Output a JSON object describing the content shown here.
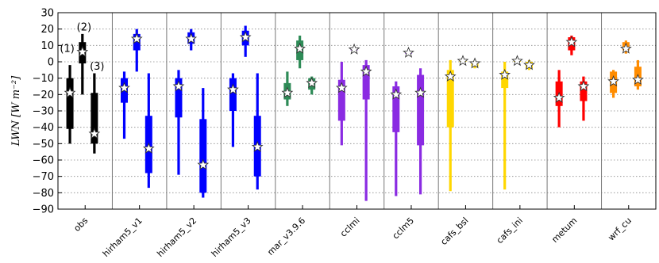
{
  "chart_data": {
    "type": "boxplot",
    "ylabel": "LWN [W m⁻²]",
    "ylim": [
      -90,
      30
    ],
    "yticks": [
      30,
      20,
      10,
      0,
      -10,
      -20,
      -30,
      -40,
      -50,
      -60,
      -70,
      -80,
      -90
    ],
    "grid": "horizontal dotted",
    "categories": [
      "obs",
      "hirham5_v1",
      "hirham5_v2",
      "hirham5_v3",
      "mar_v3.9.6",
      "cclmi",
      "cclm5",
      "cafs_bsl",
      "cafs_ini",
      "metum",
      "wrf_cu"
    ],
    "series_annotations": [
      "(1)",
      "(2)",
      "(3)"
    ],
    "colors": {
      "obs": "#000000",
      "hirham5_v1": "#0000ff",
      "hirham5_v2": "#0000ff",
      "hirham5_v3": "#0000ff",
      "mar_v3.9.6": "#2e8b57",
      "cclmi": "#8a2be2",
      "cclm5": "#8a2be2",
      "cafs_bsl": "#ffd700",
      "cafs_ini": "#ffd700",
      "metum": "#ff0000",
      "wrf_cu": "#ff8c00"
    },
    "groups": [
      {
        "category": "obs",
        "boxes": [
          {
            "series": 1,
            "min": -50,
            "q1": -41,
            "q3": -10,
            "max": -2,
            "mean": -19
          },
          {
            "series": 2,
            "min": -20,
            "q1": -1,
            "q3": 12,
            "max": 17,
            "mean": 6
          },
          {
            "series": 3,
            "min": -56,
            "q1": -50,
            "q3": -19,
            "max": -7,
            "mean": -44
          }
        ]
      },
      {
        "category": "hirham5_v1",
        "boxes": [
          {
            "series": 1,
            "min": -47,
            "q1": -25,
            "q3": -10,
            "max": -6,
            "mean": -16
          },
          {
            "series": 2,
            "min": -6,
            "q1": 7,
            "q3": 17,
            "max": 20,
            "mean": 14
          },
          {
            "series": 3,
            "min": -77,
            "q1": -68,
            "q3": -33,
            "max": -7,
            "mean": -53
          }
        ]
      },
      {
        "category": "hirham5_v2",
        "boxes": [
          {
            "series": 1,
            "min": -69,
            "q1": -34,
            "q3": -10,
            "max": -5,
            "mean": -15
          },
          {
            "series": 2,
            "min": 7,
            "q1": 11,
            "q3": 18,
            "max": 20,
            "mean": 14
          },
          {
            "series": 3,
            "min": -83,
            "q1": -80,
            "q3": -35,
            "max": -16,
            "mean": -63
          }
        ]
      },
      {
        "category": "hirham5_v3",
        "boxes": [
          {
            "series": 1,
            "min": -52,
            "q1": -30,
            "q3": -10,
            "max": -7,
            "mean": -17
          },
          {
            "series": 2,
            "min": 3,
            "q1": 10,
            "q3": 19,
            "max": 22,
            "mean": 15
          },
          {
            "series": 3,
            "min": -78,
            "q1": -70,
            "q3": -33,
            "max": -7,
            "mean": -52
          }
        ]
      },
      {
        "category": "mar_v3.9.6",
        "boxes": [
          {
            "series": 1,
            "min": -27,
            "q1": -23,
            "q3": -13,
            "max": -6,
            "mean": -19
          },
          {
            "series": 2,
            "min": -4,
            "q1": 1,
            "q3": 13,
            "max": 16,
            "mean": 8
          },
          {
            "series": 3,
            "min": -20,
            "q1": -17,
            "q3": -10,
            "max": -9,
            "mean": -13
          }
        ]
      },
      {
        "category": "cclmi",
        "boxes": [
          {
            "series": 1,
            "min": -51,
            "q1": -36,
            "q3": -11,
            "max": 0,
            "mean": -16
          },
          {
            "series": 2,
            "min": 7,
            "q1": 7,
            "q3": 8,
            "max": 8,
            "mean": 7.5
          },
          {
            "series": 3,
            "min": -85,
            "q1": -23,
            "q3": -2,
            "max": 1,
            "mean": -6
          }
        ]
      },
      {
        "category": "cclm5",
        "boxes": [
          {
            "series": 1,
            "min": -82,
            "q1": -43,
            "q3": -15,
            "max": -12,
            "mean": -20
          },
          {
            "series": 2,
            "min": 5,
            "q1": 5,
            "q3": 6,
            "max": 6,
            "mean": 5.5
          },
          {
            "series": 3,
            "min": -81,
            "q1": -51,
            "q3": -8,
            "max": -4,
            "mean": -19
          }
        ]
      },
      {
        "category": "cafs_bsl",
        "boxes": [
          {
            "series": 1,
            "min": -79,
            "q1": -40,
            "q3": -5,
            "max": 1,
            "mean": -9
          },
          {
            "series": 2,
            "min": 0,
            "q1": 0,
            "q3": 1,
            "max": 1,
            "mean": 0.5
          },
          {
            "series": 3,
            "min": -4,
            "q1": -3,
            "q3": 0,
            "max": 1,
            "mean": -1
          }
        ]
      },
      {
        "category": "cafs_ini",
        "boxes": [
          {
            "series": 1,
            "min": -78,
            "q1": -16,
            "q3": -6,
            "max": 0,
            "mean": -8
          },
          {
            "series": 2,
            "min": 0,
            "q1": 0,
            "q3": 1,
            "max": 1,
            "mean": 0.5
          },
          {
            "series": 3,
            "min": -5,
            "q1": -4,
            "q3": 0,
            "max": 1,
            "mean": -2
          }
        ]
      },
      {
        "category": "metum",
        "boxes": [
          {
            "series": 1,
            "min": -40,
            "q1": -27,
            "q3": -12,
            "max": -5,
            "mean": -22
          },
          {
            "series": 2,
            "min": 4,
            "q1": 7,
            "q3": 15,
            "max": 16,
            "mean": 12
          },
          {
            "series": 3,
            "min": -36,
            "q1": -24,
            "q3": -12,
            "max": -9,
            "mean": -15
          }
        ]
      },
      {
        "category": "wrf_cu",
        "boxes": [
          {
            "series": 1,
            "min": -22,
            "q1": -19,
            "q3": -6,
            "max": -5,
            "mean": -12
          },
          {
            "series": 2,
            "min": 5,
            "q1": 7,
            "q3": 12,
            "max": 13,
            "mean": 8
          },
          {
            "series": 3,
            "min": -17,
            "q1": -15,
            "q3": -3,
            "max": 1,
            "mean": -11
          }
        ]
      }
    ]
  }
}
